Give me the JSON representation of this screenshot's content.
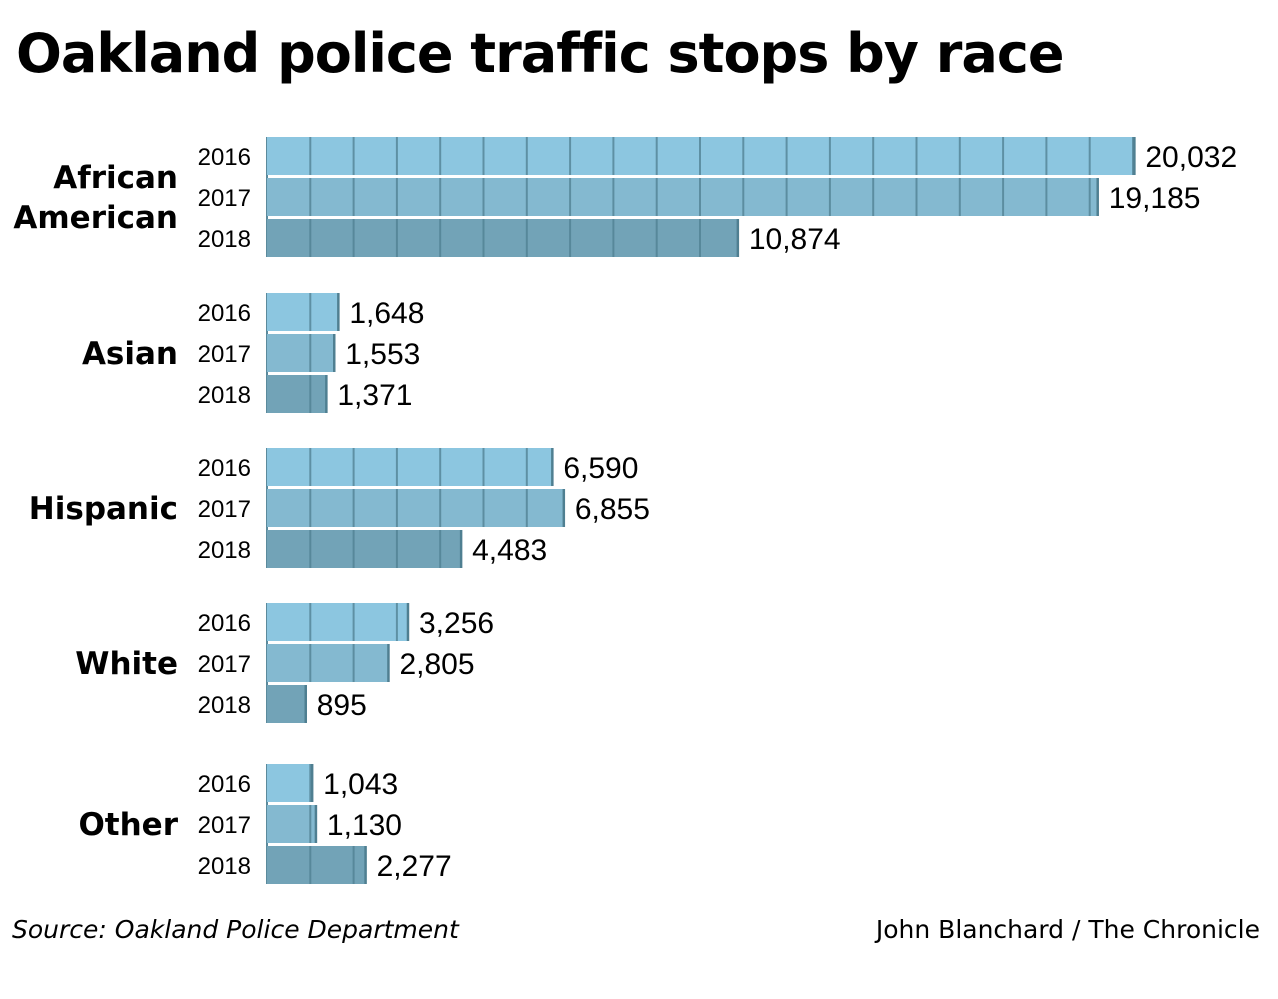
{
  "title": "Oakland police traffic stops by race",
  "footer": {
    "source": "Source: Oakland Police Department",
    "credit": "John Blanchard / The Chronicle"
  },
  "colors": {
    "2016": "#8cc6e0",
    "2017": "#84b9d0",
    "2018": "#72a3b7",
    "tick": "#4f7f91"
  },
  "chart_data": {
    "type": "bar",
    "orientation": "horizontal",
    "categories": [
      {
        "label_lines": [
          "African",
          "American"
        ],
        "years": [
          "2016",
          "2017",
          "2018"
        ],
        "values": [
          20032,
          19185,
          10874
        ],
        "value_labels": [
          "20,032",
          "19,185",
          "10,874"
        ]
      },
      {
        "label_lines": [
          "Asian"
        ],
        "years": [
          "2016",
          "2017",
          "2018"
        ],
        "values": [
          1648,
          1553,
          1371
        ],
        "value_labels": [
          "1,648",
          "1,553",
          "1,371"
        ]
      },
      {
        "label_lines": [
          "Hispanic"
        ],
        "years": [
          "2016",
          "2017",
          "2018"
        ],
        "values": [
          6590,
          6855,
          4483
        ],
        "value_labels": [
          "6,590",
          "6,855",
          "4,483"
        ]
      },
      {
        "label_lines": [
          "White"
        ],
        "years": [
          "2016",
          "2017",
          "2018"
        ],
        "values": [
          3256,
          2805,
          895
        ],
        "value_labels": [
          "3,256",
          "2,805",
          "895"
        ]
      },
      {
        "label_lines": [
          "Other"
        ],
        "years": [
          "2016",
          "2017",
          "2018"
        ],
        "values": [
          1043,
          1130,
          2277
        ],
        "value_labels": [
          "1,043",
          "1,130",
          "2,277"
        ]
      }
    ],
    "series": [
      "2016",
      "2017",
      "2018"
    ],
    "tick_interval": 1000,
    "xlim": [
      0,
      20032
    ],
    "grid": false,
    "legend": "none"
  }
}
